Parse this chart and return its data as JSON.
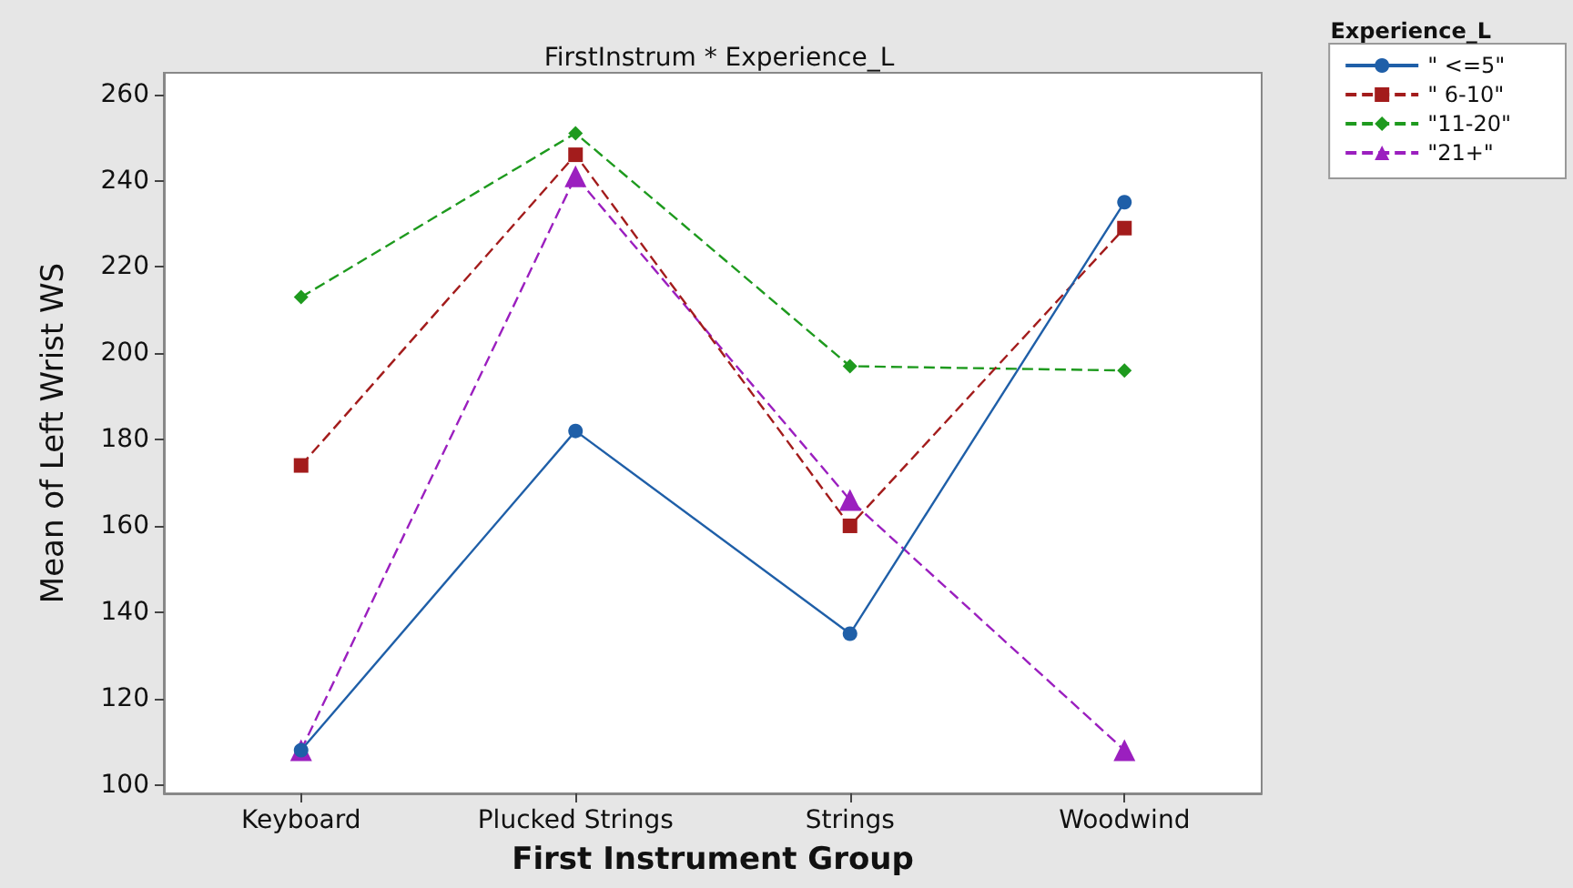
{
  "chart_data": {
    "type": "line",
    "title": "FirstInstrum * Experience_L",
    "xlabel": "First Instrument Group",
    "ylabel": "Mean of Left Wrist WS",
    "legend_title": "Experience_L",
    "categories": [
      "Keyboard",
      "Plucked Strings",
      "Strings",
      "Woodwind"
    ],
    "series": [
      {
        "name": "\" <=5\"",
        "color": "#1f5fa8",
        "marker": "circle",
        "line_style": "solid",
        "values": [
          108,
          182,
          135,
          235
        ]
      },
      {
        "name": "\" 6-10\"",
        "color": "#a31c1c",
        "marker": "square",
        "line_style": "dashed",
        "values": [
          174,
          246,
          160,
          229
        ]
      },
      {
        "name": "\"11-20\"",
        "color": "#1e9a1e",
        "marker": "diamond",
        "line_style": "dashed",
        "values": [
          213,
          251,
          197,
          196
        ]
      },
      {
        "name": "\"21+\"",
        "color": "#9b1fbf",
        "marker": "triangle",
        "line_style": "dashed",
        "values": [
          108,
          241,
          166,
          108
        ]
      }
    ],
    "ylim": [
      98,
      265
    ],
    "yticks": [
      100,
      120,
      140,
      160,
      180,
      200,
      220,
      240,
      260
    ],
    "grid": false,
    "legend": "top right"
  }
}
